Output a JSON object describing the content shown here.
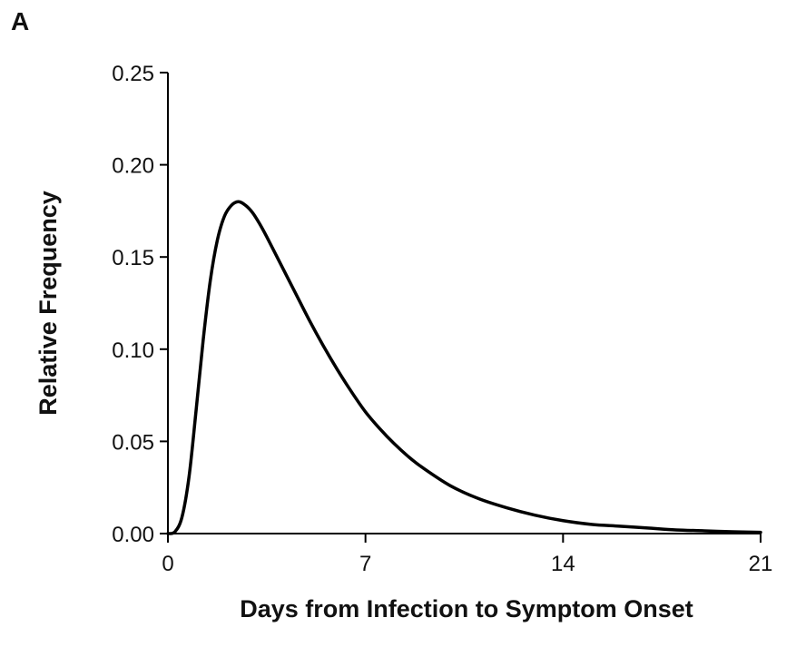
{
  "panel_label": "A",
  "chart_data": {
    "type": "line",
    "title": "",
    "xlabel": "Days from Infection to Symptom Onset",
    "ylabel": "Relative Frequency",
    "xlim": [
      0,
      21
    ],
    "ylim": [
      0,
      0.25
    ],
    "x_ticks": [
      0,
      7,
      14,
      21
    ],
    "x_tick_labels": [
      "0",
      "7",
      "14",
      "21"
    ],
    "y_ticks": [
      0,
      0.05,
      0.1,
      0.15,
      0.2,
      0.25
    ],
    "y_tick_labels": [
      "0.00",
      "0.05",
      "0.10",
      "0.15",
      "0.20",
      "0.25"
    ],
    "grid": false,
    "legend": "none",
    "line_color": "#000000",
    "series": [
      {
        "x": [
          0,
          0.25,
          0.5,
          0.75,
          1,
          1.25,
          1.5,
          1.75,
          2,
          2.25,
          2.5,
          2.75,
          3,
          3.25,
          3.5,
          4,
          4.5,
          5,
          5.5,
          6,
          6.5,
          7,
          7.5,
          8,
          8.5,
          9,
          10,
          11,
          12,
          13,
          14,
          15,
          16,
          17,
          18,
          19,
          20,
          21
        ],
        "values": [
          0,
          0.001,
          0.009,
          0.031,
          0.067,
          0.105,
          0.137,
          0.159,
          0.172,
          0.178,
          0.18,
          0.178,
          0.174,
          0.168,
          0.161,
          0.146,
          0.131,
          0.116,
          0.102,
          0.089,
          0.077,
          0.066,
          0.057,
          0.049,
          0.042,
          0.036,
          0.026,
          0.019,
          0.014,
          0.01,
          0.007,
          0.005,
          0.004,
          0.003,
          0.002,
          0.0015,
          0.001,
          0.0007
        ]
      }
    ]
  }
}
